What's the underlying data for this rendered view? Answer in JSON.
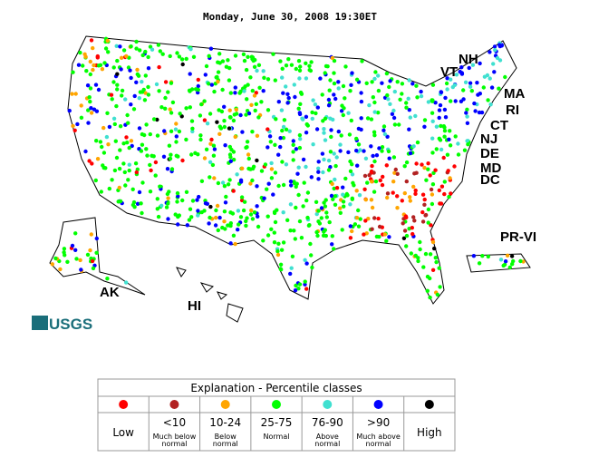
{
  "title": "Monday, June 30, 2008 19:30ET",
  "region_labels": [
    "NH",
    "VT",
    "MA",
    "RI",
    "CT",
    "NJ",
    "DE",
    "MD",
    "DC",
    "PR-VI",
    "AK",
    "HI"
  ],
  "logo": "USGS",
  "legend": {
    "title": "Explanation - Percentile classes",
    "classes": [
      {
        "label": "Low",
        "color": "#ff0000"
      },
      {
        "label": "<10",
        "sublabel": [
          "Much below",
          "normal"
        ],
        "color": "#b22222"
      },
      {
        "label": "10-24",
        "sublabel": [
          "Below",
          "normal"
        ],
        "color": "#ffa500"
      },
      {
        "label": "25-75",
        "sublabel": [
          "Normal"
        ],
        "color": "#00ff00"
      },
      {
        "label": "76-90",
        "sublabel": [
          "Above",
          "normal"
        ],
        "color": "#40e0d0"
      },
      {
        "label": ">90",
        "sublabel": [
          "Much above",
          "normal"
        ],
        "color": "#0000ff"
      },
      {
        "label": "High",
        "color": "#000000"
      }
    ]
  }
}
